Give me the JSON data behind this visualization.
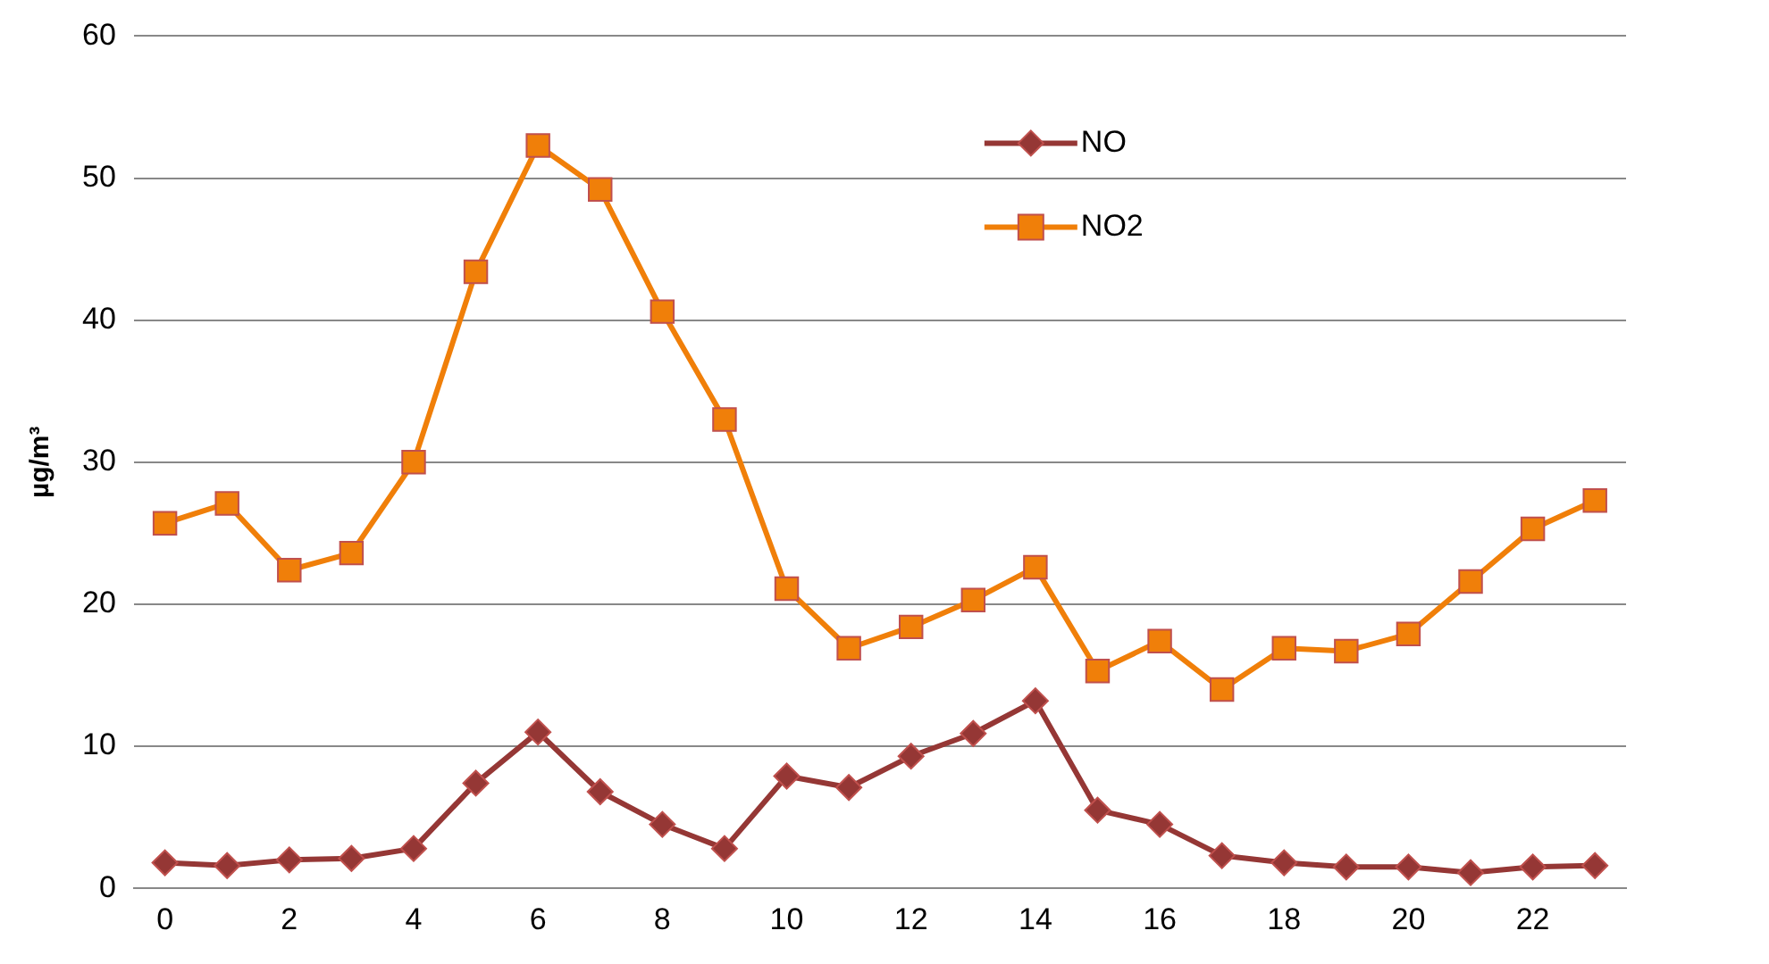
{
  "chart_data": {
    "type": "line",
    "ylabel": "µg/m³",
    "categories": [
      "0",
      null,
      "2",
      null,
      "4",
      null,
      "6",
      null,
      "8",
      null,
      "10",
      null,
      "12",
      null,
      "14",
      null,
      "16",
      null,
      "18",
      null,
      "20",
      null,
      "22",
      null
    ],
    "series": [
      {
        "name": "NO",
        "color": "#953735",
        "marker": "diamond",
        "values": [
          1.8,
          1.6,
          2.0,
          2.1,
          2.8,
          7.4,
          11.0,
          6.8,
          4.5,
          2.8,
          7.9,
          7.1,
          9.3,
          10.9,
          13.2,
          5.5,
          4.5,
          2.3,
          1.8,
          1.5,
          1.5,
          1.1,
          1.5,
          1.6
        ]
      },
      {
        "name": "NO2",
        "color": "#f07f09",
        "marker": "square",
        "values": [
          25.7,
          27.1,
          22.4,
          23.6,
          30.0,
          43.4,
          52.3,
          49.2,
          40.6,
          33.0,
          21.1,
          16.9,
          18.4,
          20.3,
          22.6,
          15.3,
          17.4,
          14.0,
          16.9,
          16.7,
          17.9,
          21.6,
          25.3,
          27.3
        ]
      }
    ],
    "ylim": [
      0,
      60
    ],
    "yticks": [
      0,
      10,
      20,
      30,
      40,
      50,
      60
    ],
    "grid": "y",
    "legend": "top right"
  }
}
